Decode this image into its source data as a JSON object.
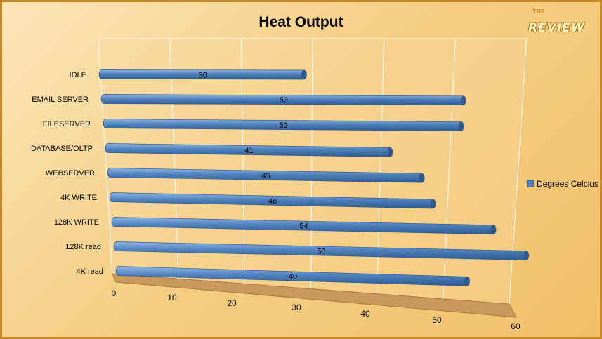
{
  "chart_data": {
    "type": "bar",
    "orientation": "horizontal",
    "title": "Heat Output",
    "categories": [
      "IDLE",
      "EMAIL SERVER",
      "FILESERVER",
      "DATABASE/OLTP",
      "WEBSERVER",
      "4K WRITE",
      "128K WRITE",
      "128K read",
      "4K read"
    ],
    "series": [
      {
        "name": "Degrees Celcius",
        "values": [
          30,
          53,
          52,
          41,
          45,
          46,
          54,
          58,
          49
        ]
      }
    ],
    "xticks": [
      0,
      10,
      20,
      30,
      40,
      50,
      60
    ],
    "xlim": [
      0,
      60
    ],
    "grid": true,
    "legend_position": "right",
    "colors": {
      "bar": "#4f81bd",
      "bar_dark": "#2f5a8f",
      "bar_light": "#8fb4e3"
    }
  },
  "logo": {
    "small": "THE",
    "big": "REVIEW"
  }
}
